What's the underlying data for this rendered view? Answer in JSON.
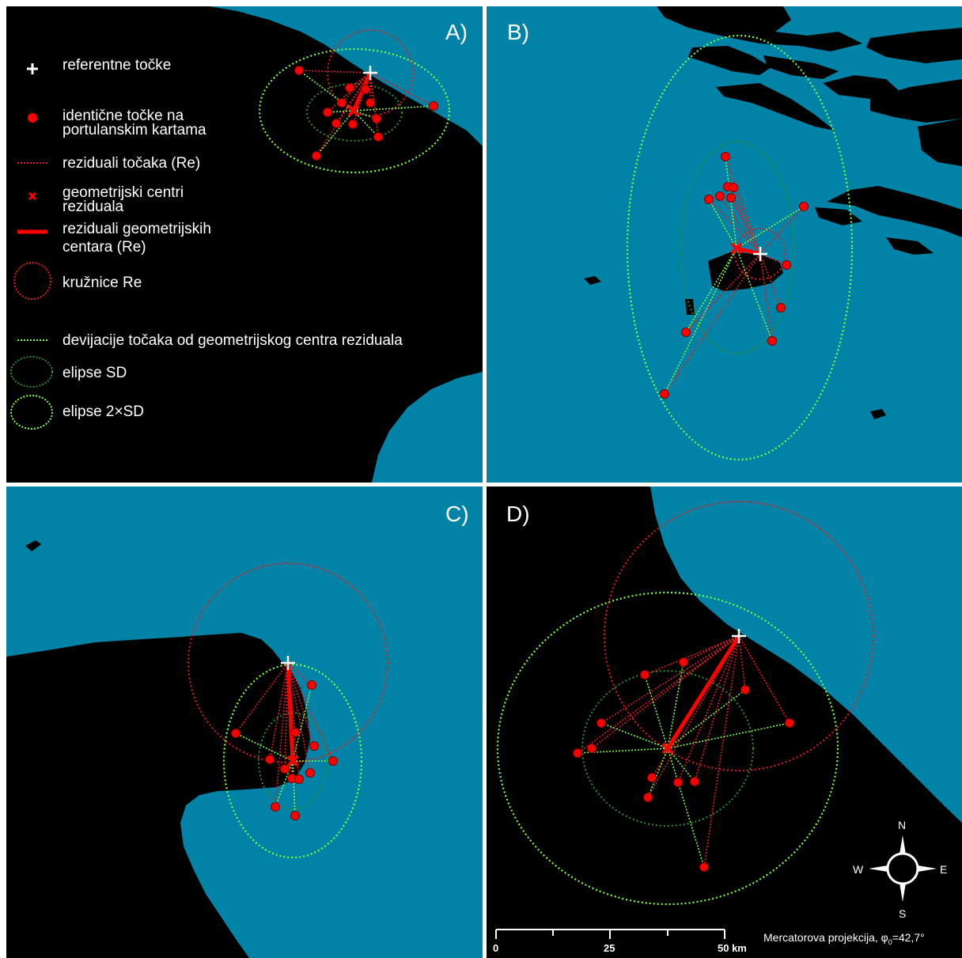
{
  "panels": {
    "a": "A)",
    "b": "B)",
    "c": "C)",
    "d": "D)"
  },
  "legend": {
    "items": [
      {
        "key": "ref",
        "text": "referentne točke",
        "icon": "white-cross"
      },
      {
        "key": "ident1",
        "text": "identične točke na",
        "icon": "red-dot"
      },
      {
        "key": "ident2",
        "text": "portulanskim kartama"
      },
      {
        "key": "resid",
        "text": "reziduali točaka (Re)",
        "icon": "red-dotted-line"
      },
      {
        "key": "geo1",
        "text": "geometrijski centri",
        "icon": "red-x"
      },
      {
        "key": "geo2",
        "text": "reziduala"
      },
      {
        "key": "rgeo1",
        "text": "reziduali geometrijskih",
        "icon": "red-thick-line"
      },
      {
        "key": "rgeo2",
        "text": "centara (Re)"
      },
      {
        "key": "circ",
        "text": "kružnice Re",
        "icon": "red-dotted-circle"
      },
      {
        "key": "dev",
        "text": "devijacije točaka od geometrijskog centra reziduala",
        "icon": "green-dotted-line"
      },
      {
        "key": "sd",
        "text": "elipse SD",
        "icon": "dark-green-ellipse"
      },
      {
        "key": "sd2",
        "text": "elipse 2×SD",
        "icon": "light-green-ellipse"
      }
    ]
  },
  "compass": {
    "n": "N",
    "s": "S",
    "e": "E",
    "w": "W"
  },
  "scalebar": {
    "t0": "0",
    "t1": "25",
    "t2": "50 km"
  },
  "projection": {
    "text": "Mercatorova projekcija, φ",
    "sub": "0",
    "value": "=42,7°"
  },
  "colors": {
    "sea": "#0083a6",
    "land": "#000000",
    "red": "#ff0000",
    "green_light": "#7fff3f",
    "green_dark": "#2f8f2f",
    "white": "#ffffff"
  }
}
